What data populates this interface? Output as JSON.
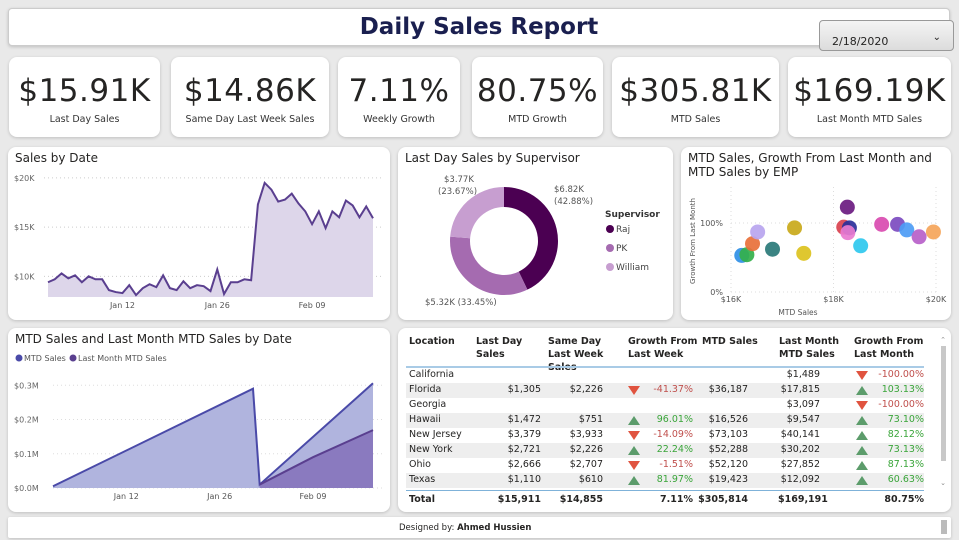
{
  "header": {
    "title": "Daily Sales Report",
    "date_slicer": {
      "value": "2/18/2020",
      "icon": "chevron-down-icon"
    }
  },
  "kpis": [
    {
      "value": "$15.91K",
      "label": "Last Day Sales"
    },
    {
      "value": "$14.86K",
      "label": "Same Day Last Week Sales"
    },
    {
      "value": "7.11%",
      "label": "Weekly Growth"
    },
    {
      "value": "80.75%",
      "label": "MTD Growth"
    },
    {
      "value": "$305.81K",
      "label": "MTD Sales"
    },
    {
      "value": "$169.19K",
      "label": "Last Month MTD Sales"
    }
  ],
  "chart_data": [
    {
      "type": "area",
      "title": "Sales by Date",
      "color": "#5a3f8f",
      "ylim": [
        7.9,
        20.5
      ],
      "yticks": [
        "$10K",
        "$15K",
        "$20K"
      ],
      "yticks_values": [
        10,
        15,
        20
      ],
      "xticks": [
        "Jan 12",
        "Jan 26",
        "Feb 09"
      ],
      "x_start": "Jan 1",
      "x_end": "Feb 18",
      "values_k": [
        9.4,
        9.7,
        10.3,
        9.8,
        10.1,
        9.4,
        10.0,
        9.7,
        9.7,
        8.6,
        8.4,
        8.3,
        9.1,
        8.1,
        8.8,
        9.2,
        8.9,
        10.1,
        8.8,
        8.6,
        9.5,
        8.8,
        9.1,
        9.0,
        8.5,
        10.7,
        8.2,
        9.4,
        9.4,
        9.7,
        9.6,
        17.3,
        19.5,
        18.8,
        17.6,
        17.8,
        18.4,
        17.4,
        16.6,
        15.3,
        16.6,
        14.9,
        16.6,
        16.0,
        17.7,
        17.2,
        16.0,
        17.1,
        15.9
      ]
    },
    {
      "type": "pie",
      "title": "Last Day Sales by Supervisor",
      "legend_title": "Supervisor",
      "slices": [
        {
          "name": "Raj",
          "value": 6.82,
          "label": "$6.82K",
          "pct_label": "(42.88%)",
          "color": "#4b0052"
        },
        {
          "name": "PK",
          "value": 5.32,
          "label": "$5.32K (33.45%)",
          "color": "#a56bb0"
        },
        {
          "name": "William",
          "value": 3.77,
          "label": "$3.77K",
          "pct_label": "(23.67%)",
          "color": "#c79ed0"
        }
      ]
    },
    {
      "type": "scatter",
      "title": "MTD Sales, Growth From Last Month and MTD Sales by EMP",
      "xlabel": "MTD Sales",
      "ylabel": "Growth From Last Month",
      "xlim": [
        16,
        20
      ],
      "ylim": [
        0,
        150
      ],
      "xticks": [
        "$16K",
        "$18K",
        "$20K"
      ],
      "yticks": [
        "0%",
        "100%"
      ],
      "points": [
        {
          "x": 16.21,
          "y": 53,
          "color": "#2f8fe6"
        },
        {
          "x": 16.31,
          "y": 54,
          "color": "#33b04a"
        },
        {
          "x": 16.42,
          "y": 70,
          "color": "#e8703a"
        },
        {
          "x": 16.52,
          "y": 87,
          "color": "#b9a5ef"
        },
        {
          "x": 16.81,
          "y": 62,
          "color": "#2a7a78"
        },
        {
          "x": 17.24,
          "y": 93,
          "color": "#c9a91a"
        },
        {
          "x": 17.42,
          "y": 56,
          "color": "#dcc21e"
        },
        {
          "x": 18.27,
          "y": 123,
          "color": "#6a1a80"
        },
        {
          "x": 18.2,
          "y": 94,
          "color": "#d9414e"
        },
        {
          "x": 18.31,
          "y": 93,
          "color": "#2a2f9a"
        },
        {
          "x": 18.28,
          "y": 86,
          "color": "#e97bd0"
        },
        {
          "x": 18.53,
          "y": 67,
          "color": "#2fc8ee"
        },
        {
          "x": 18.94,
          "y": 98,
          "color": "#d94bb0"
        },
        {
          "x": 19.25,
          "y": 98,
          "color": "#7c4bc0"
        },
        {
          "x": 19.43,
          "y": 90,
          "color": "#4d9cf5"
        },
        {
          "x": 19.67,
          "y": 80,
          "color": "#b760c9"
        },
        {
          "x": 19.95,
          "y": 87,
          "color": "#f5a55a"
        }
      ]
    },
    {
      "type": "area",
      "title": "MTD Sales and Last Month MTD Sales by Date",
      "ylim": [
        0,
        0.33
      ],
      "yticks": [
        "$0.0M",
        "$0.1M",
        "$0.2M",
        "$0.3M"
      ],
      "yticks_values": [
        0,
        0.1,
        0.2,
        0.3
      ],
      "xticks": [
        "Jan 12",
        "Jan 26",
        "Feb 09"
      ],
      "series": [
        {
          "name": "MTD Sales",
          "color": "#4a4aa8",
          "points": [
            [
              0,
              0.005
            ],
            [
              30,
              0.29
            ],
            [
              31,
              0.01
            ],
            [
              48,
              0.306
            ]
          ]
        },
        {
          "name": "Last Month MTD Sales",
          "color": "#5a3f8f",
          "points": [
            [
              31,
              0.01
            ],
            [
              39,
              0.09
            ],
            [
              48,
              0.169
            ]
          ]
        }
      ]
    }
  ],
  "table": {
    "headers": [
      "Location",
      "Last Day Sales",
      "Same Day Last Week Sales",
      "Growth From Last Week",
      "MTD Sales",
      "Last Month MTD Sales",
      "Growth From Last Month"
    ],
    "rows": [
      [
        "California",
        "",
        "",
        "",
        "",
        "$1,489",
        "-100.00%"
      ],
      [
        "Florida",
        "$1,305",
        "$2,226",
        "-41.37%",
        "$36,187",
        "$17,815",
        "103.13%"
      ],
      [
        "Georgia",
        "",
        "",
        "",
        "",
        "$3,097",
        "-100.00%"
      ],
      [
        "Hawaii",
        "$1,472",
        "$751",
        "96.01%",
        "$16,526",
        "$9,547",
        "73.10%"
      ],
      [
        "New Jersey",
        "$3,379",
        "$3,933",
        "-14.09%",
        "$73,103",
        "$40,141",
        "82.12%"
      ],
      [
        "New York",
        "$2,721",
        "$2,226",
        "22.24%",
        "$52,288",
        "$30,202",
        "73.13%"
      ],
      [
        "Ohio",
        "$2,666",
        "$2,707",
        "-1.51%",
        "$52,120",
        "$27,852",
        "87.13%"
      ],
      [
        "Texas",
        "$1,110",
        "$610",
        "81.97%",
        "$19,423",
        "$12,092",
        "60.63%"
      ]
    ],
    "total": [
      "Total",
      "$15,911",
      "$14,855",
      "7.11%",
      "$305,814",
      "$169,191",
      "80.75%"
    ]
  },
  "footer": {
    "prefix": "Designed by: ",
    "author": "Ahmed Hussien"
  }
}
